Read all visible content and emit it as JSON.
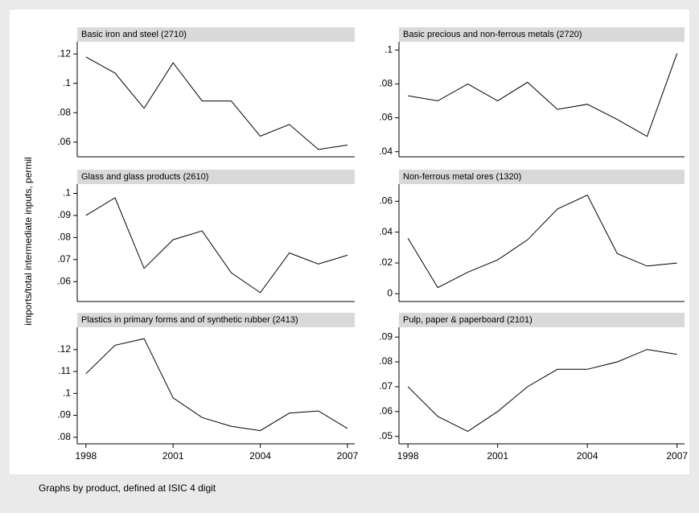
{
  "y_label": "imports/total intermediate inputs, permil",
  "note": "Graphs by product, defined at ISIC 4 digit",
  "chart_data": [
    {
      "type": "line",
      "title": "Basic iron and steel (2710)",
      "x": [
        1998,
        1999,
        2000,
        2001,
        2002,
        2003,
        2004,
        2005,
        2006,
        2007
      ],
      "values": [
        0.118,
        0.107,
        0.083,
        0.114,
        0.088,
        0.088,
        0.064,
        0.072,
        0.055,
        0.058
      ],
      "xlim": [
        1997.7,
        2007.25
      ],
      "ylim": [
        0.05,
        0.125
      ],
      "yticks": [
        {
          "value": 0.06,
          "label": ".06"
        },
        {
          "value": 0.08,
          "label": ".08"
        },
        {
          "value": 0.1,
          "label": ".1"
        },
        {
          "value": 0.12,
          "label": ".12"
        }
      ]
    },
    {
      "type": "line",
      "title": "Basic precious and non-ferrous metals (2720)",
      "x": [
        1998,
        1999,
        2000,
        2001,
        2002,
        2003,
        2004,
        2005,
        2006,
        2007
      ],
      "values": [
        0.073,
        0.07,
        0.08,
        0.07,
        0.081,
        0.065,
        0.068,
        0.059,
        0.049,
        0.098
      ],
      "xlim": [
        1997.7,
        2007.25
      ],
      "ylim": [
        0.037,
        0.102
      ],
      "yticks": [
        {
          "value": 0.04,
          "label": ".04"
        },
        {
          "value": 0.06,
          "label": ".06"
        },
        {
          "value": 0.08,
          "label": ".08"
        },
        {
          "value": 0.1,
          "label": ".1"
        }
      ]
    },
    {
      "type": "line",
      "title": "Glass and glass products (2610)",
      "x": [
        1998,
        1999,
        2000,
        2001,
        2002,
        2003,
        2004,
        2005,
        2006,
        2007
      ],
      "values": [
        0.09,
        0.098,
        0.066,
        0.079,
        0.083,
        0.064,
        0.055,
        0.073,
        0.068,
        0.072
      ],
      "xlim": [
        1997.7,
        2007.25
      ],
      "ylim": [
        0.051,
        0.102
      ],
      "yticks": [
        {
          "value": 0.06,
          "label": ".06"
        },
        {
          "value": 0.07,
          "label": ".07"
        },
        {
          "value": 0.08,
          "label": ".08"
        },
        {
          "value": 0.09,
          "label": ".09"
        },
        {
          "value": 0.1,
          "label": ".1"
        }
      ]
    },
    {
      "type": "line",
      "title": "Non-ferrous metal ores (1320)",
      "x": [
        1998,
        1999,
        2000,
        2001,
        2002,
        2003,
        2004,
        2005,
        2006,
        2007
      ],
      "values": [
        0.036,
        0.004,
        0.014,
        0.022,
        0.035,
        0.055,
        0.064,
        0.026,
        0.018,
        0.02
      ],
      "xlim": [
        1997.7,
        2007.25
      ],
      "ylim": [
        -0.005,
        0.068
      ],
      "yticks": [
        0,
        {
          "value": 0.02,
          "label": ".02"
        },
        {
          "value": 0.04,
          "label": ".04"
        },
        {
          "value": 0.06,
          "label": ".06"
        }
      ]
    },
    {
      "type": "line",
      "title": "Plastics in primary forms and of synthetic rubber (2413)",
      "x": [
        1998,
        1999,
        2000,
        2001,
        2002,
        2003,
        2004,
        2005,
        2006,
        2007
      ],
      "values": [
        0.109,
        0.122,
        0.125,
        0.098,
        0.089,
        0.085,
        0.083,
        0.091,
        0.092,
        0.084
      ],
      "xlim": [
        1997.7,
        2007.25
      ],
      "ylim": [
        0.077,
        0.128
      ],
      "xticks": [
        1998,
        2001,
        2004,
        2007
      ],
      "yticks": [
        {
          "value": 0.08,
          "label": ".08"
        },
        {
          "value": 0.09,
          "label": ".09"
        },
        {
          "value": 0.1,
          "label": ".1"
        },
        {
          "value": 0.11,
          "label": ".11"
        },
        {
          "value": 0.12,
          "label": ".12"
        }
      ]
    },
    {
      "type": "line",
      "title": "Pulp, paper & paperboard (2101)",
      "x": [
        1998,
        1999,
        2000,
        2001,
        2002,
        2003,
        2004,
        2005,
        2006,
        2007
      ],
      "values": [
        0.07,
        0.058,
        0.052,
        0.06,
        0.07,
        0.077,
        0.077,
        0.08,
        0.085,
        0.083
      ],
      "xlim": [
        1997.7,
        2007.25
      ],
      "ylim": [
        0.047,
        0.092
      ],
      "xticks": [
        1998,
        2001,
        2004,
        2007
      ],
      "yticks": [
        {
          "value": 0.05,
          "label": ".05"
        },
        {
          "value": 0.06,
          "label": ".06"
        },
        {
          "value": 0.07,
          "label": ".07"
        },
        {
          "value": 0.08,
          "label": ".08"
        },
        {
          "value": 0.09,
          "label": ".09"
        }
      ]
    }
  ]
}
